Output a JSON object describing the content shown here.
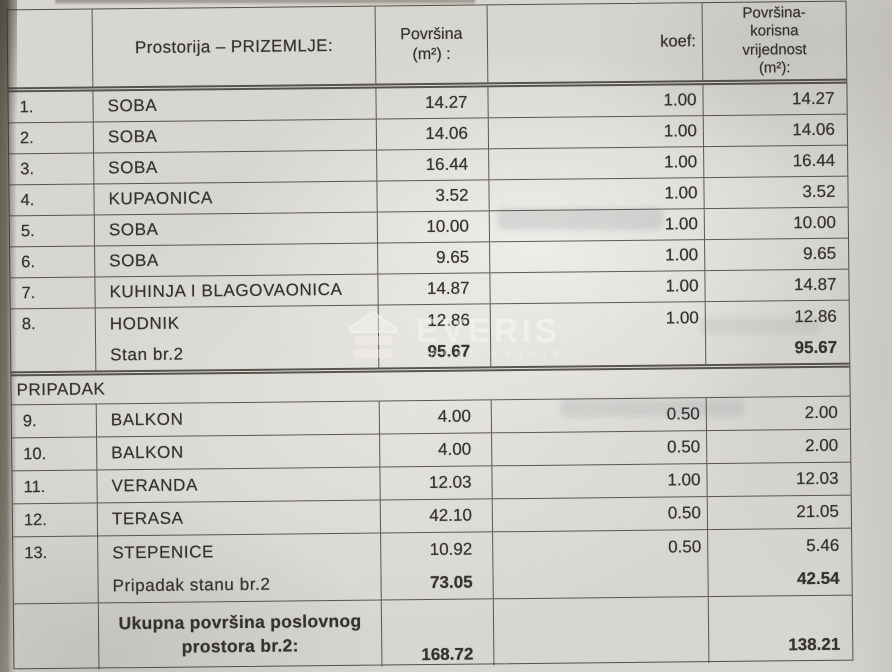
{
  "document": {
    "watermark": {
      "brand": "EVERIS",
      "subtitle": "REAL ESTATE",
      "icon": "house-icon"
    },
    "table": {
      "headers": {
        "col_number": "",
        "col_rooms": "Prostorija – PRIZEMLJE:",
        "col_area_line1": "Površina",
        "col_area_line2": "(m²) :",
        "col_koef": "koef:",
        "col_useful": [
          "Površina-",
          "korisna",
          "vrijednost",
          "(m²):"
        ]
      },
      "main_rows": [
        {
          "num": "1.",
          "name": "SOBA",
          "area": "14.27",
          "koef": "1.00",
          "useful": "14.27"
        },
        {
          "num": "2.",
          "name": "SOBA",
          "area": "14.06",
          "koef": "1.00",
          "useful": "14.06"
        },
        {
          "num": "3.",
          "name": "SOBA",
          "area": "16.44",
          "koef": "1.00",
          "useful": "16.44"
        },
        {
          "num": "4.",
          "name": "KUPAONICA",
          "area": "3.52",
          "koef": "1.00",
          "useful": "3.52"
        },
        {
          "num": "5.",
          "name": "SOBA",
          "area": "10.00",
          "koef": "1.00",
          "useful": "10.00"
        },
        {
          "num": "6.",
          "name": "SOBA",
          "area": "9.65",
          "koef": "1.00",
          "useful": "9.65"
        },
        {
          "num": "7.",
          "name": "KUHINJA I BLAGOVAONICA",
          "area": "14.87",
          "koef": "1.00",
          "useful": "14.87"
        },
        {
          "num": "8.",
          "name": "HODNIK",
          "area": "12.86",
          "koef": "1.00",
          "useful": "12.86"
        }
      ],
      "stan_summary": {
        "label": "Stan br.2",
        "area": "95.67",
        "koef": "",
        "useful": "95.67"
      },
      "section_label": "PRIPADAK",
      "pripadak_rows": [
        {
          "num": "9.",
          "name": "BALKON",
          "area": "4.00",
          "koef": "0.50",
          "useful": "2.00"
        },
        {
          "num": "10.",
          "name": "BALKON",
          "area": "4.00",
          "koef": "0.50",
          "useful": "2.00"
        },
        {
          "num": "11.",
          "name": "VERANDA",
          "area": "12.03",
          "koef": "1.00",
          "useful": "12.03"
        },
        {
          "num": "12.",
          "name": "TERASA",
          "area": "42.10",
          "koef": "0.50",
          "useful": "21.05"
        },
        {
          "num": "13.",
          "name": "STEPENICE",
          "area": "10.92",
          "koef": "0.50",
          "useful": "5.46"
        }
      ],
      "pripadak_summary": {
        "label": "Pripadak stanu br.2",
        "area": "73.05",
        "koef": "",
        "useful": "42.54"
      },
      "total": {
        "label_line1": "Ukupna površina poslovnog",
        "label_line2": "prostora br.2:",
        "area": "168.72",
        "koef": "",
        "useful": "138.21"
      }
    },
    "colors": {
      "paper": "#d8d6d1",
      "line": "#34322c",
      "text": "#35332d",
      "scan_edge": "#6e6b5e",
      "watermark": "#f6f5f1"
    }
  }
}
